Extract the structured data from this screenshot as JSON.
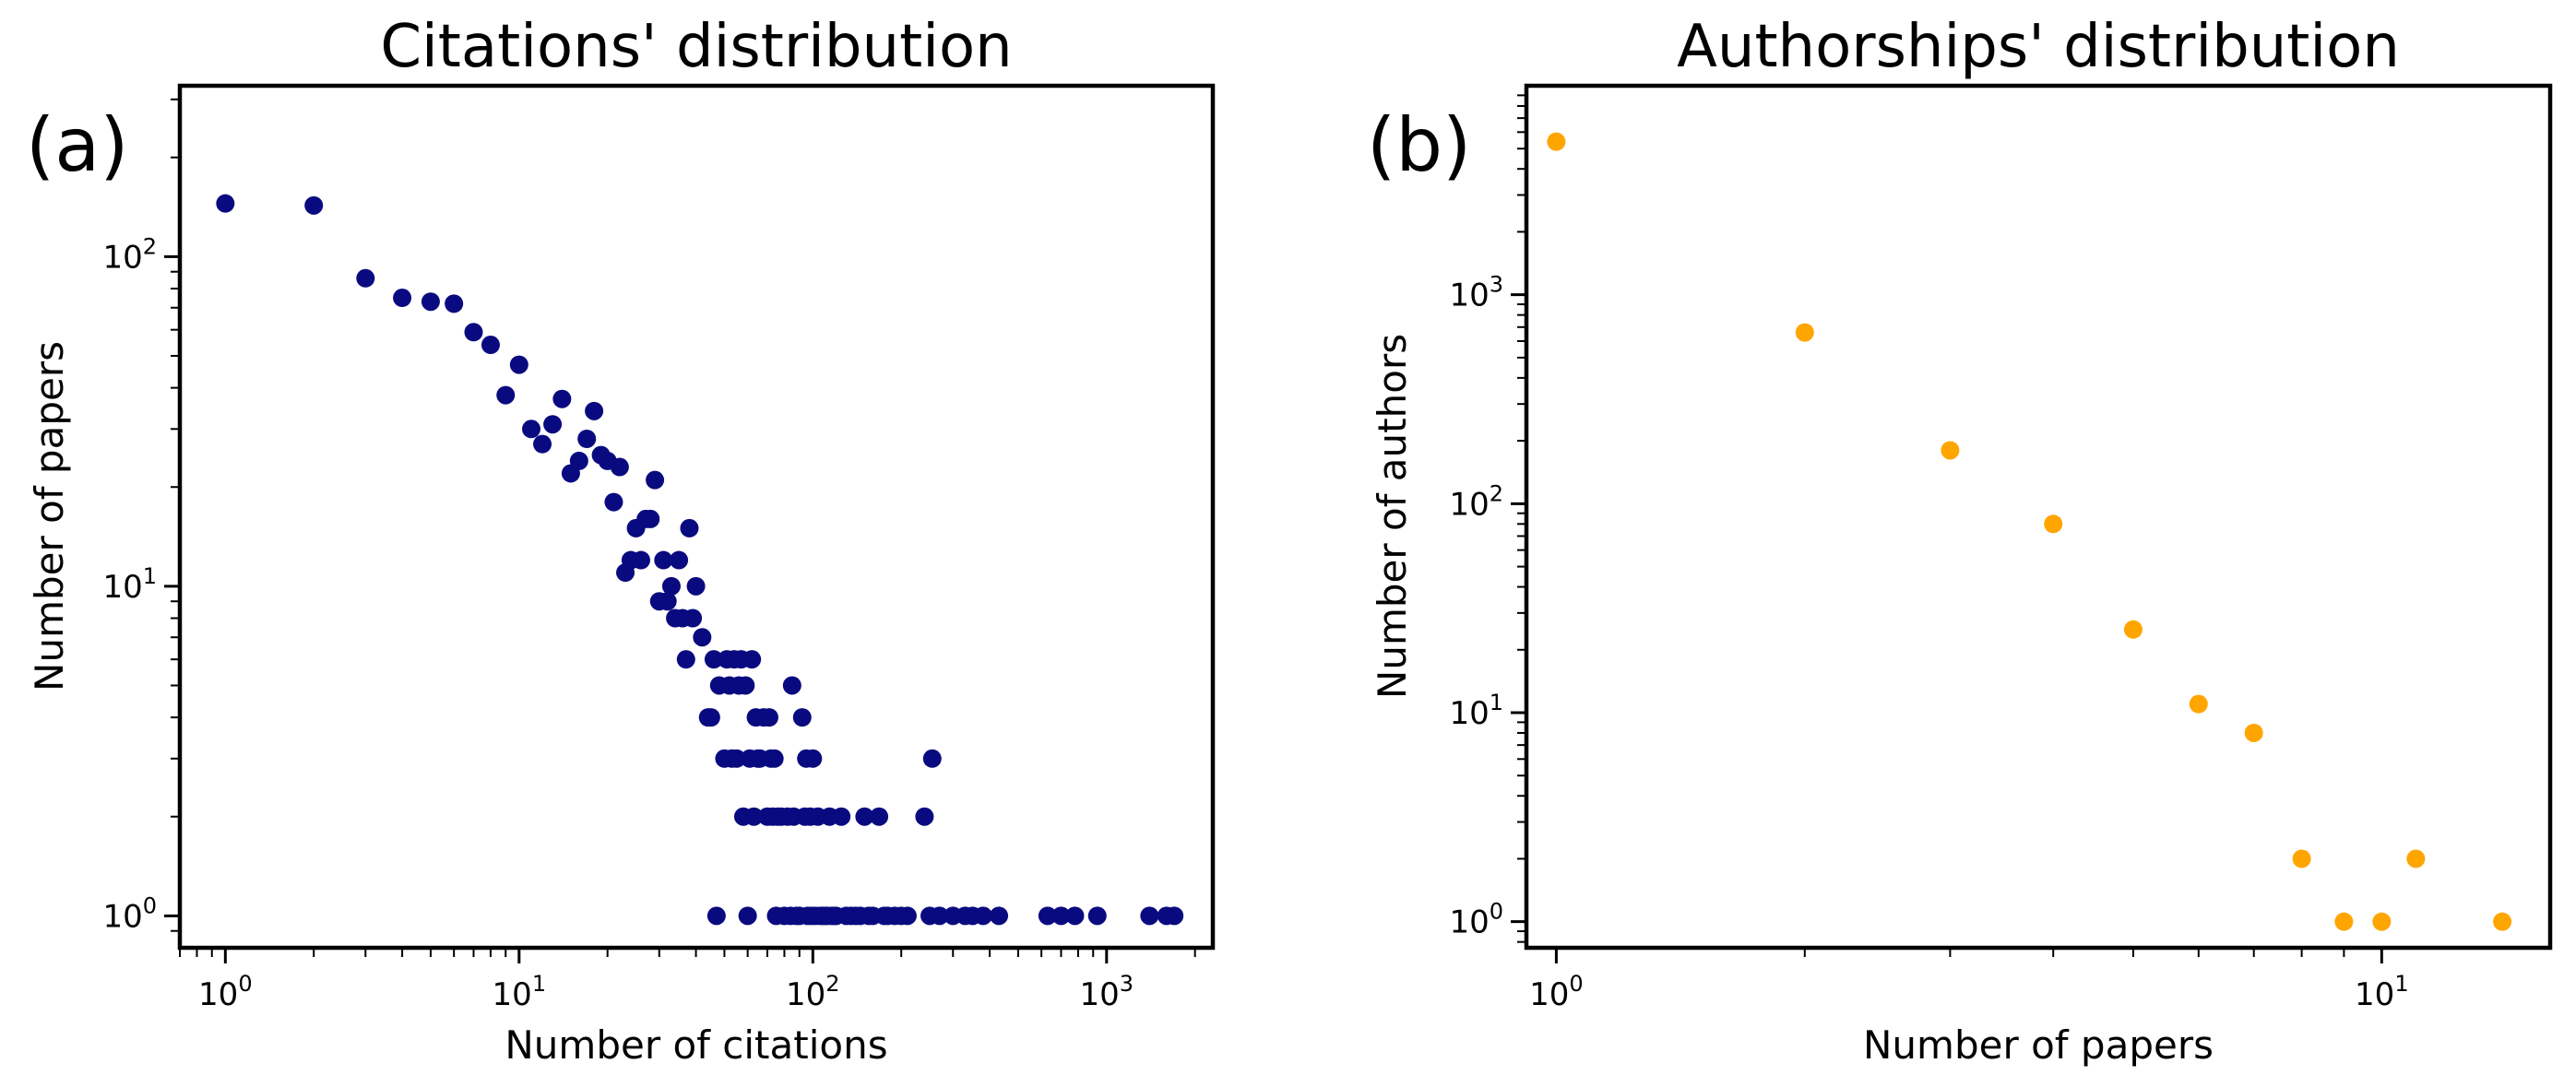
{
  "chart_data": [
    {
      "type": "scatter",
      "panel_label": "(a)",
      "title": "Citations' distribution",
      "xlabel": "Number of citations",
      "ylabel": "Number of papers",
      "xscale": "log",
      "yscale": "log",
      "xlim": [
        0.7,
        2300
      ],
      "ylim": [
        0.8,
        330
      ],
      "xticks": [
        {
          "base": "10",
          "exp": "0",
          "value": 1
        },
        {
          "base": "10",
          "exp": "1",
          "value": 10
        },
        {
          "base": "10",
          "exp": "2",
          "value": 100
        },
        {
          "base": "10",
          "exp": "3",
          "value": 1000
        }
      ],
      "yticks": [
        {
          "base": "10",
          "exp": "0",
          "value": 1
        },
        {
          "base": "10",
          "exp": "1",
          "value": 10
        },
        {
          "base": "10",
          "exp": "2",
          "value": 100
        }
      ],
      "marker_color": "#0a0a80",
      "series": [
        {
          "name": "papers",
          "points": [
            [
              1,
              145
            ],
            [
              2,
              143
            ],
            [
              3,
              86
            ],
            [
              4,
              75
            ],
            [
              5,
              73
            ],
            [
              6,
              72
            ],
            [
              7,
              59
            ],
            [
              8,
              54
            ],
            [
              9,
              38
            ],
            [
              10,
              47
            ],
            [
              11,
              30
            ],
            [
              12,
              27
            ],
            [
              13,
              31
            ],
            [
              14,
              37
            ],
            [
              15,
              22
            ],
            [
              16,
              24
            ],
            [
              17,
              28
            ],
            [
              18,
              34
            ],
            [
              19,
              25
            ],
            [
              20,
              24
            ],
            [
              21,
              18
            ],
            [
              22,
              23
            ],
            [
              23,
              11
            ],
            [
              24,
              12
            ],
            [
              25,
              15
            ],
            [
              26,
              12
            ],
            [
              27,
              16
            ],
            [
              28,
              16
            ],
            [
              29,
              21
            ],
            [
              30,
              9
            ],
            [
              31,
              12
            ],
            [
              32,
              9
            ],
            [
              33,
              10
            ],
            [
              34,
              8
            ],
            [
              35,
              12
            ],
            [
              36,
              8
            ],
            [
              37,
              6
            ],
            [
              38,
              15
            ],
            [
              39,
              8
            ],
            [
              40,
              10
            ],
            [
              42,
              7
            ],
            [
              44,
              4
            ],
            [
              45,
              4
            ],
            [
              46,
              6
            ],
            [
              47,
              1
            ],
            [
              48,
              5
            ],
            [
              50,
              3
            ],
            [
              51,
              6
            ],
            [
              52,
              5
            ],
            [
              53,
              3
            ],
            [
              54,
              6
            ],
            [
              55,
              3
            ],
            [
              56,
              5
            ],
            [
              57,
              6
            ],
            [
              58,
              2
            ],
            [
              59,
              5
            ],
            [
              60,
              1
            ],
            [
              61,
              3
            ],
            [
              62,
              6
            ],
            [
              63,
              2
            ],
            [
              64,
              4
            ],
            [
              65,
              3
            ],
            [
              66,
              3
            ],
            [
              68,
              4
            ],
            [
              70,
              2
            ],
            [
              71,
              4
            ],
            [
              72,
              3
            ],
            [
              73,
              2
            ],
            [
              74,
              3
            ],
            [
              75,
              1
            ],
            [
              76,
              2
            ],
            [
              78,
              2
            ],
            [
              80,
              1
            ],
            [
              82,
              2
            ],
            [
              84,
              1
            ],
            [
              85,
              5
            ],
            [
              86,
              2
            ],
            [
              88,
              1
            ],
            [
              90,
              1
            ],
            [
              92,
              4
            ],
            [
              94,
              2
            ],
            [
              95,
              3
            ],
            [
              96,
              1
            ],
            [
              98,
              2
            ],
            [
              99,
              1
            ],
            [
              100,
              3
            ],
            [
              102,
              1
            ],
            [
              104,
              2
            ],
            [
              106,
              1
            ],
            [
              108,
              1
            ],
            [
              110,
              1
            ],
            [
              112,
              1
            ],
            [
              114,
              2
            ],
            [
              116,
              1
            ],
            [
              118,
              1
            ],
            [
              120,
              1
            ],
            [
              125,
              2
            ],
            [
              130,
              1
            ],
            [
              135,
              1
            ],
            [
              140,
              1
            ],
            [
              145,
              1
            ],
            [
              150,
              2
            ],
            [
              155,
              1
            ],
            [
              160,
              1
            ],
            [
              168,
              2
            ],
            [
              175,
              1
            ],
            [
              180,
              1
            ],
            [
              190,
              1
            ],
            [
              200,
              1
            ],
            [
              210,
              1
            ],
            [
              240,
              2
            ],
            [
              250,
              1
            ],
            [
              255,
              3
            ],
            [
              270,
              1
            ],
            [
              300,
              1
            ],
            [
              330,
              1
            ],
            [
              350,
              1
            ],
            [
              380,
              1
            ],
            [
              430,
              1
            ],
            [
              630,
              1
            ],
            [
              700,
              1
            ],
            [
              780,
              1
            ],
            [
              930,
              1
            ],
            [
              1400,
              1
            ],
            [
              1600,
              1
            ],
            [
              1700,
              1
            ]
          ]
        }
      ]
    },
    {
      "type": "scatter",
      "panel_label": "(b)",
      "title": "Authorships' distribution",
      "xlabel": "Number of papers",
      "ylabel": "Number of authors",
      "xscale": "log",
      "yscale": "log",
      "xlim": [
        0.92,
        16.0
      ],
      "ylim": [
        0.75,
        10000
      ],
      "xticks": [
        {
          "base": "10",
          "exp": "0",
          "value": 1
        },
        {
          "base": "10",
          "exp": "1",
          "value": 10
        }
      ],
      "yticks": [
        {
          "base": "10",
          "exp": "0",
          "value": 1
        },
        {
          "base": "10",
          "exp": "1",
          "value": 10
        },
        {
          "base": "10",
          "exp": "2",
          "value": 100
        },
        {
          "base": "10",
          "exp": "3",
          "value": 1000
        }
      ],
      "marker_color": "#ffa500",
      "series": [
        {
          "name": "authors",
          "points": [
            [
              1,
              5400
            ],
            [
              2,
              660
            ],
            [
              3,
              180
            ],
            [
              4,
              80
            ],
            [
              5,
              25
            ],
            [
              6,
              11
            ],
            [
              7,
              8
            ],
            [
              8,
              2
            ],
            [
              9,
              1
            ],
            [
              10,
              1
            ],
            [
              11,
              2
            ],
            [
              14,
              1
            ]
          ]
        }
      ]
    }
  ]
}
